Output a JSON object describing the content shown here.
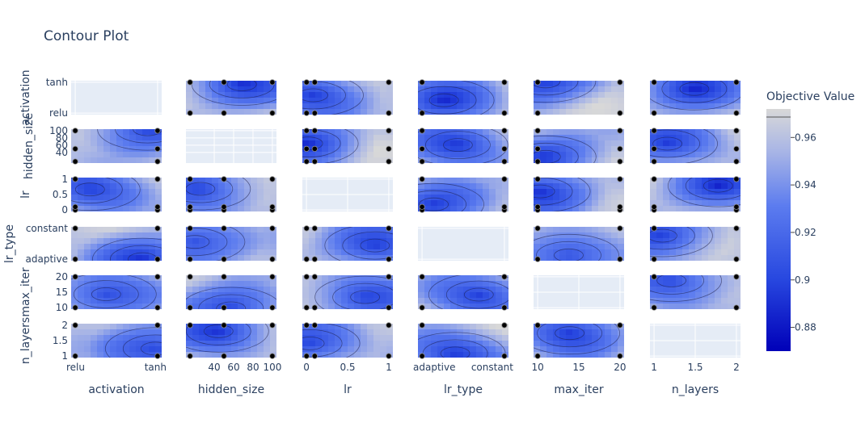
{
  "chart_data": {
    "type": "contour",
    "title": "Contour Plot",
    "colorbar": {
      "title": "Objective Value",
      "ticks": [
        "0.96",
        "0.94",
        "0.92",
        "0.9",
        "0.88"
      ],
      "tick_values": [
        0.96,
        0.94,
        0.92,
        0.9,
        0.88
      ],
      "range": [
        0.87,
        0.972
      ],
      "colors": [
        "#0000b8",
        "#3a5bea",
        "#9fb0ec",
        "#d7d7d7"
      ]
    },
    "params": [
      "activation",
      "hidden_size",
      "lr",
      "lr_type",
      "max_iter",
      "n_layers"
    ],
    "x_axes": [
      {
        "label": "activation",
        "ticks": [
          "relu",
          "tanh"
        ]
      },
      {
        "label": "hidden_size",
        "ticks": [
          "40",
          "60",
          "80",
          "100"
        ]
      },
      {
        "label": "lr",
        "ticks": [
          "0",
          "0.5",
          "1"
        ]
      },
      {
        "label": "lr_type",
        "ticks": [
          "adaptive",
          "constant"
        ]
      },
      {
        "label": "max_iter",
        "ticks": [
          "10",
          "15",
          "20"
        ]
      },
      {
        "label": "n_layers",
        "ticks": [
          "1",
          "1.5",
          "2"
        ]
      }
    ],
    "y_axes": [
      {
        "label": "activation",
        "ticks": [
          "tanh",
          "relu"
        ]
      },
      {
        "label": "hidden_size",
        "ticks": [
          "100",
          "80",
          "60",
          "40"
        ]
      },
      {
        "label": "lr",
        "ticks": [
          "1",
          "0.5",
          "0"
        ]
      },
      {
        "label": "lr_type",
        "ticks": [
          "constant",
          "adaptive"
        ]
      },
      {
        "label": "max_iter",
        "ticks": [
          "20",
          "15",
          "10"
        ]
      },
      {
        "label": "n_layers",
        "ticks": [
          "2",
          "1.5",
          "1"
        ]
      }
    ],
    "trial_points": {
      "activation": [
        0,
        1
      ],
      "hidden_size": [
        15,
        50,
        100
      ],
      "lr": [
        0.001,
        0.1,
        1
      ],
      "lr_type": [
        0,
        1
      ],
      "max_iter": [
        10,
        20
      ],
      "n_layers": [
        1,
        2
      ]
    },
    "param_ranges": {
      "activation": [
        -0.05,
        1.05
      ],
      "hidden_size": [
        10.75,
        104.25
      ],
      "lr": [
        -0.05,
        1.05
      ],
      "lr_type": [
        -0.05,
        1.05
      ],
      "max_iter": [
        9.5,
        20.5
      ],
      "n_layers": [
        0.95,
        2.05
      ]
    }
  }
}
